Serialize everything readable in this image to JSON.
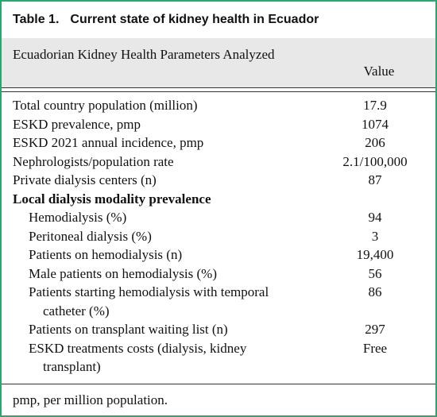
{
  "title": {
    "label": "Table 1.",
    "text": "Current state of kidney health in Ecuador"
  },
  "table": {
    "header": [
      "Ecuadorian Kidney Health Parameters Analyzed",
      "Value"
    ],
    "rows": [
      [
        "Total country population (million)",
        "17.9"
      ],
      [
        "ESKD prevalence, pmp",
        "1074"
      ],
      [
        "ESKD 2021 annual incidence, pmp",
        "206"
      ],
      [
        "Nephrologists/population rate",
        "2.1/100,000"
      ],
      [
        "Private dialysis centers (n)",
        "87"
      ]
    ],
    "section": {
      "title": "Local dialysis modality prevalence",
      "rows": [
        [
          "Hemodialysis (%)",
          "94"
        ],
        [
          "Peritoneal dialysis (%)",
          "3"
        ],
        [
          "Patients on hemodialysis (n)",
          "19,400"
        ],
        [
          "Male patients on hemodialysis (%)",
          "56"
        ],
        [
          "Patients starting hemodialysis with temporal catheter (%)",
          "86"
        ],
        [
          "Patients on transplant waiting list (n)",
          "297"
        ],
        [
          "ESKD treatments costs (dialysis, kidney transplant)",
          "Free"
        ]
      ]
    }
  },
  "footnote": "pmp, per million population."
}
